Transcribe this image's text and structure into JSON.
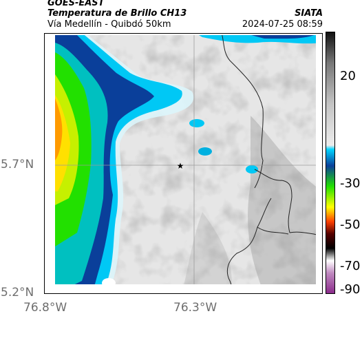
{
  "header": {
    "satellite": "GOES-EAST",
    "product": "Temperatura de Brillo CH13",
    "route": "Vía Medellín - Quibdó 50km",
    "org": "SIATA",
    "datetime": "2024-07-25 08:59"
  },
  "axes": {
    "lat_label": "5.7°N",
    "lat_label_bottom": "5.2°N",
    "lon_left": "76.8°W",
    "lon_mid": "76.3°W"
  },
  "colorbar": {
    "ticks": [
      "20",
      "-30",
      "-50",
      "-70",
      "-90"
    ],
    "stops": [
      {
        "v": 35,
        "c": "#111111"
      },
      {
        "v": 20,
        "c": "#777777"
      },
      {
        "v": 0,
        "c": "#c4c4c4"
      },
      {
        "v": -20,
        "c": "#ececec"
      },
      {
        "v": -22,
        "c": "#00d4ff"
      },
      {
        "v": -30,
        "c": "#0a3f9a"
      },
      {
        "v": -40,
        "c": "#22e000"
      },
      {
        "v": -50,
        "c": "#ffff00"
      },
      {
        "v": -57,
        "c": "#ff4000"
      },
      {
        "v": -63,
        "c": "#550000"
      },
      {
        "v": -70,
        "c": "#000000"
      },
      {
        "v": -76,
        "c": "#ffffff"
      },
      {
        "v": -82,
        "c": "#c08ac0"
      },
      {
        "v": -92,
        "c": "#8a2a8a"
      }
    ]
  },
  "colors": {
    "land_light": "#e8e8e8",
    "land_dark": "#9a9a9a",
    "border": "#222222",
    "grid": "#9a9a9a"
  },
  "marker": {
    "symbol": "★",
    "name": "location-star"
  }
}
